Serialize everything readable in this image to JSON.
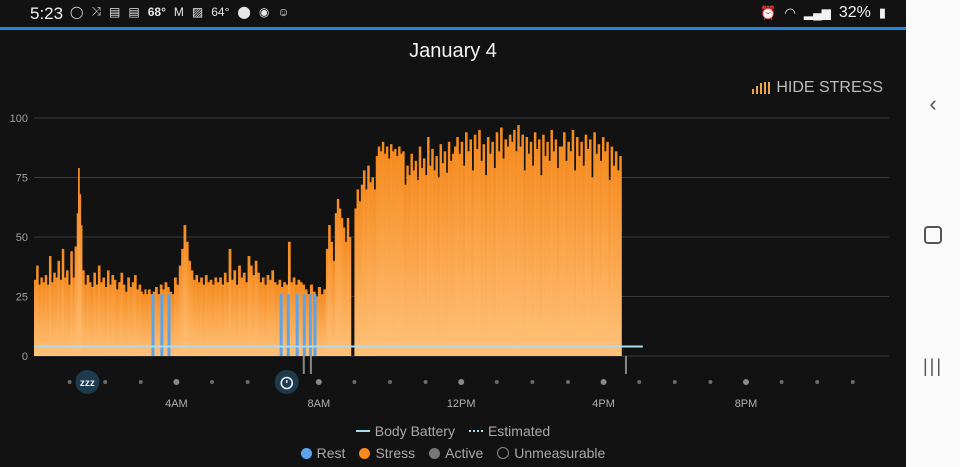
{
  "status_bar": {
    "time": "5:23",
    "temp1": "68°",
    "temp2": "64°",
    "battery": "32%"
  },
  "header": {
    "title": "January 4",
    "toggle_label": "HIDE STRESS"
  },
  "legend": {
    "body_battery": "Body Battery",
    "estimated": "Estimated",
    "rest": "Rest",
    "stress": "Stress",
    "active": "Active",
    "unmeasurable": "Unmeasurable"
  },
  "colors": {
    "stress_top": "#f58a1f",
    "stress_bottom": "#ffc27a",
    "rest": "#5aa4ee",
    "body_battery": "#a9dcf0",
    "accent": "#1e88e5"
  },
  "icons": {
    "sleep": "zzz-sleep-icon",
    "alarm": "alarm-clock-icon"
  },
  "chart_data": {
    "type": "bar",
    "x_unit": "hours",
    "xlim": [
      0,
      24
    ],
    "ylim": [
      0,
      100
    ],
    "y_ticks": [
      0,
      25,
      50,
      75,
      100
    ],
    "x_ticks": [
      {
        "x": 4,
        "label": "4AM"
      },
      {
        "x": 8,
        "label": "8AM"
      },
      {
        "x": 12,
        "label": "12PM"
      },
      {
        "x": 16,
        "label": "4PM"
      },
      {
        "x": 20,
        "label": "8PM"
      }
    ],
    "series": [
      {
        "name": "Stress",
        "segments": [
          {
            "x0": 0.0,
            "x1": 1.2,
            "values": [
              32,
              38,
              30,
              33,
              31,
              34,
              30,
              42,
              31,
              35,
              33,
              40,
              32,
              45,
              33,
              36,
              30,
              44,
              33,
              46
            ]
          },
          {
            "x0": 1.2,
            "x1": 1.35,
            "values": [
              60,
              79,
              68,
              55
            ]
          },
          {
            "x0": 1.35,
            "x1": 3.0,
            "values": [
              36,
              30,
              34,
              31,
              29,
              35,
              30,
              38,
              31,
              33,
              29,
              36,
              30,
              34,
              32,
              28,
              31,
              35,
              30,
              27,
              33,
              29,
              31,
              34,
              28,
              30
            ]
          },
          {
            "x0": 3.0,
            "x1": 3.2,
            "values": [
              27,
              26,
              28,
              26
            ]
          },
          {
            "x0": 3.2,
            "x1": 5.2,
            "values": [
              28,
              26,
              27,
              29,
              26,
              30,
              28,
              31,
              29,
              27,
              26,
              33,
              30,
              38,
              45,
              55,
              48,
              40,
              36,
              32,
              34,
              31,
              33,
              30,
              34,
              31,
              32,
              30,
              33,
              31
            ]
          },
          {
            "x0": 5.2,
            "x1": 6.0,
            "values": [
              33,
              30,
              35,
              31,
              45,
              32,
              36,
              30,
              38,
              33,
              35,
              31
            ]
          },
          {
            "x0": 6.0,
            "x1": 6.8,
            "values": [
              42,
              38,
              34,
              40,
              35,
              31,
              33,
              30,
              34,
              32,
              36,
              31
            ]
          },
          {
            "x0": 6.8,
            "x1": 7.6,
            "values": [
              30,
              32,
              29,
              31,
              30,
              48,
              31,
              33,
              30,
              32,
              31,
              30
            ]
          },
          {
            "x0": 7.6,
            "x1": 8.2,
            "values": [
              28,
              26,
              30,
              27,
              25,
              29,
              26,
              28
            ]
          },
          {
            "x0": 8.2,
            "x1": 8.45,
            "values": [
              45,
              55,
              48,
              40
            ]
          },
          {
            "x0": 8.45,
            "x1": 8.9,
            "values": [
              60,
              66,
              62,
              58,
              54,
              48,
              58,
              50
            ]
          },
          {
            "x0": 9.0,
            "x1": 9.6,
            "values": [
              62,
              70,
              65,
              72,
              78,
              70,
              80,
              73,
              75,
              70
            ]
          },
          {
            "x0": 9.6,
            "x1": 10.4,
            "values": [
              84,
              88,
              86,
              90,
              85,
              88,
              83,
              89,
              86,
              87,
              84,
              88,
              85,
              86
            ]
          },
          {
            "x0": 10.4,
            "x1": 11.8,
            "values": [
              72,
              80,
              76,
              85,
              78,
              82,
              74,
              88,
              79,
              83,
              76,
              92,
              80,
              87,
              78,
              84,
              75,
              89,
              81,
              86,
              77,
              90,
              82,
              85
            ]
          },
          {
            "x0": 11.8,
            "x1": 13.4,
            "values": [
              88,
              92,
              85,
              90,
              80,
              94,
              86,
              91,
              78,
              93,
              87,
              95,
              82,
              89,
              76,
              92,
              85,
              90,
              79,
              94,
              86,
              96,
              83,
              91,
              88,
              93
            ]
          },
          {
            "x0": 13.4,
            "x1": 14.8,
            "values": [
              90,
              95,
              86,
              97,
              88,
              93,
              78,
              92,
              85,
              90,
              80,
              94,
              87,
              91,
              76,
              93,
              84,
              90,
              82,
              95,
              86,
              91,
              79,
              88
            ]
          },
          {
            "x0": 14.8,
            "x1": 16.5,
            "values": [
              88,
              94,
              82,
              90,
              86,
              95,
              78,
              92,
              84,
              90,
              80,
              93,
              87,
              91,
              75,
              94,
              85,
              89,
              82,
              92,
              86,
              90,
              74,
              88,
              80,
              86,
              78,
              84
            ]
          }
        ]
      },
      {
        "name": "Rest",
        "bars": [
          3.3,
          3.55,
          3.75,
          6.9,
          7.1,
          7.35,
          7.55,
          7.72,
          7.85
        ]
      },
      {
        "name": "Body Battery",
        "value": 4,
        "x0": 0,
        "x1": 17.1
      }
    ]
  }
}
